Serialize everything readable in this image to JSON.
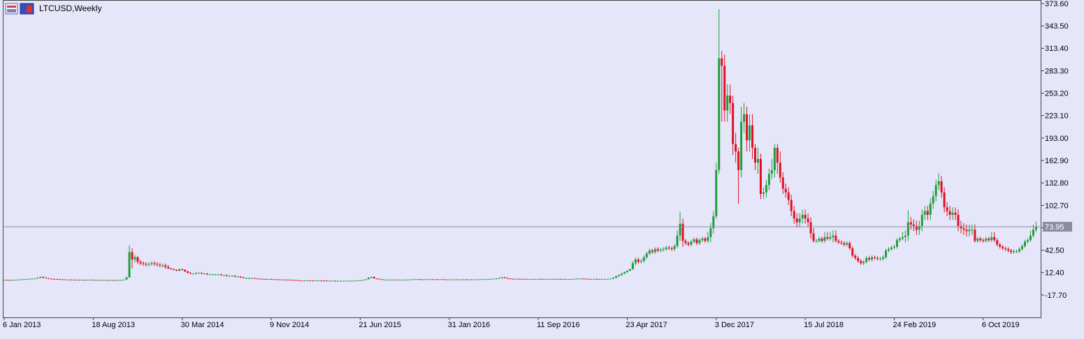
{
  "chart_data": {
    "type": "candlestick",
    "title": "LTCUSD,Weekly",
    "up_color": "#1e9e3a",
    "down_color": "#e01020",
    "price_line_color": "#8c8ca0",
    "price_line": 73.95,
    "xlim": [
      -0.5,
      372.9
    ],
    "xticks": [
      {
        "value": 0,
        "label": "6 Jan 2013"
      },
      {
        "value": 32,
        "label": "18 Aug 2013"
      },
      {
        "value": 64,
        "label": "30 Mar 2014"
      },
      {
        "value": 96,
        "label": "9 Nov 2014"
      },
      {
        "value": 128,
        "label": "21 Jun 2015"
      },
      {
        "value": 160,
        "label": "31 Jan 2016"
      },
      {
        "value": 192,
        "label": "11 Sep 2016"
      },
      {
        "value": 224,
        "label": "23 Apr 2017"
      },
      {
        "value": 256,
        "label": "3 Dec 2017"
      },
      {
        "value": 288,
        "label": "15 Jul 2018"
      },
      {
        "value": 320,
        "label": "24 Feb 2019"
      },
      {
        "value": 352,
        "label": "6 Oct 2019"
      }
    ],
    "ylim": [
      -47.7,
      378.3
    ],
    "yticks": [
      {
        "value": 373.6,
        "label": "373.60"
      },
      {
        "value": 343.5,
        "label": "343.50"
      },
      {
        "value": 313.4,
        "label": "313.40"
      },
      {
        "value": 283.3,
        "label": "283.30"
      },
      {
        "value": 253.2,
        "label": "253.20"
      },
      {
        "value": 223.1,
        "label": "223.10"
      },
      {
        "value": 193.0,
        "label": "193.00"
      },
      {
        "value": 162.9,
        "label": "162.90"
      },
      {
        "value": 132.8,
        "label": "132.80"
      },
      {
        "value": 102.7,
        "label": "102.70"
      },
      {
        "value": 72.6,
        "label": "72.60"
      },
      {
        "value": 42.5,
        "label": "42.50"
      },
      {
        "value": 12.4,
        "label": "12.40"
      },
      {
        "value": -17.7,
        "label": "-17.70"
      }
    ],
    "open": [
      2.5,
      2.6,
      2.5,
      2.4,
      2.5,
      2.8,
      3.0,
      3.2,
      3.5,
      3.8,
      4.0,
      4.3,
      4.5,
      5.5,
      6.5,
      5.5,
      4.8,
      4.2,
      4.0,
      3.8,
      3.6,
      3.4,
      3.2,
      3.0,
      3.0,
      2.9,
      2.8,
      2.8,
      2.7,
      2.7,
      2.6,
      2.7,
      2.8,
      2.6,
      2.6,
      2.5,
      2.5,
      2.5,
      2.4,
      2.4,
      2.4,
      2.2,
      2.3,
      2.5,
      3.0,
      6,
      40,
      30,
      33,
      27,
      25,
      24,
      23,
      24,
      25,
      24,
      23,
      22,
      22,
      20,
      18,
      17,
      16,
      15,
      17,
      16,
      14,
      12,
      11,
      11,
      12,
      12,
      11,
      11,
      10,
      10,
      10,
      10,
      10,
      9,
      9,
      8,
      8,
      8,
      7,
      7,
      6,
      5,
      5,
      5,
      5,
      4.5,
      4.3,
      4.0,
      3.8,
      3.7,
      3.8,
      3.5,
      3.4,
      3.3,
      3.1,
      3.0,
      2.9,
      2.8,
      2.7,
      2.4,
      2.1,
      1.7,
      1.6,
      1.8,
      1.9,
      1.8,
      1.7,
      1.8,
      1.8,
      1.7,
      1.6,
      1.5,
      1.5,
      1.5,
      1.4,
      1.4,
      1.4,
      1.4,
      1.5,
      1.5,
      1.5,
      1.6,
      1.8,
      2.0,
      2.5,
      3.5,
      5.5,
      6.5,
      4.5,
      4.0,
      3.5,
      2.8,
      2.9,
      2.9,
      3.0,
      3.0,
      2.9,
      2.9,
      2.9,
      2.9,
      3.0,
      3.3,
      3.5,
      3.6,
      3.4,
      3.3,
      3.4,
      3.5,
      3.5,
      3.4,
      3.5,
      3.3,
      3.5,
      3.2,
      3.1,
      3.2,
      3.2,
      3.3,
      3.2,
      3.2,
      3.3,
      3.2,
      3.3,
      3.2,
      3.3,
      3.3,
      3.5,
      3.6,
      3.7,
      3.8,
      4.0,
      4.3,
      4.5,
      5.2,
      6.0,
      5.0,
      4.5,
      4.1,
      4.0,
      4.1,
      4.0,
      3.9,
      3.8,
      3.8,
      3.8,
      3.8,
      3.8,
      3.9,
      3.8,
      3.8,
      3.9,
      3.9,
      3.9,
      3.8,
      3.9,
      3.8,
      3.8,
      3.8,
      3.8,
      3.8,
      4.0,
      4.3,
      4.4,
      4.3,
      3.9,
      3.8,
      3.9,
      3.9,
      3.8,
      3.8,
      3.8,
      3.9,
      4.0,
      4.2,
      5.5,
      7.5,
      9,
      11,
      13,
      15,
      17,
      25,
      30,
      27,
      28,
      33,
      38,
      42,
      40,
      44,
      42,
      43,
      44,
      46,
      45,
      44,
      48,
      62,
      78,
      55,
      52,
      50,
      54,
      57,
      52,
      56,
      58,
      55,
      60,
      72,
      88,
      150,
      300,
      290,
      230,
      250,
      240,
      185,
      175,
      150,
      215,
      225,
      190,
      210,
      180,
      160,
      165,
      118,
      120,
      130,
      145,
      150,
      180,
      160,
      140,
      125,
      120,
      110,
      95,
      85,
      80,
      85,
      90,
      85,
      80,
      65,
      55,
      55,
      58,
      55,
      60,
      58,
      60,
      62,
      55,
      53,
      52,
      50,
      52,
      45,
      35,
      32,
      28,
      25,
      27,
      32,
      30,
      33,
      32,
      31,
      31,
      33,
      42,
      44,
      46,
      47,
      56,
      58,
      60,
      62,
      80,
      77,
      75,
      70,
      75,
      90,
      95,
      90,
      105,
      115,
      130,
      135,
      120,
      100,
      95,
      90,
      93,
      90,
      75,
      72,
      70,
      68,
      70,
      70,
      55,
      58,
      56,
      55,
      58,
      56,
      60,
      56,
      50,
      47,
      45,
      44,
      42,
      40,
      41,
      41,
      44,
      48,
      54,
      56,
      62,
      70
    ],
    "high": [
      2.8,
      2.8,
      2.7,
      2.7,
      3.0,
      3.2,
      3.4,
      3.7,
      4.0,
      4.2,
      4.5,
      4.7,
      6.3,
      7.3,
      7.3,
      6.3,
      5.0,
      4.4,
      4.2,
      4.0,
      3.8,
      3.6,
      3.4,
      3.2,
      3.2,
      3.1,
      3.0,
      3.0,
      2.9,
      2.9,
      2.9,
      3.0,
      3.0,
      2.8,
      2.8,
      2.7,
      2.7,
      2.7,
      2.6,
      2.6,
      2.6,
      2.5,
      2.7,
      3.2,
      7,
      49,
      45,
      36,
      35,
      29.5,
      27.5,
      26.5,
      26.5,
      27.5,
      27.5,
      26.5,
      25.5,
      24.5,
      24.5,
      22.5,
      18.8,
      17.8,
      16.8,
      17.8,
      17.8,
      16.8,
      14.8,
      12.8,
      11.8,
      12.8,
      12.8,
      12.8,
      11.8,
      11.8,
      10.8,
      10.8,
      10.8,
      10.8,
      10.8,
      9.8,
      9.8,
      8.8,
      8.8,
      8.8,
      7.8,
      7.8,
      6.8,
      5.8,
      5.8,
      5.8,
      5.8,
      4.7,
      4.5,
      4.2,
      4.0,
      4.0,
      4.0,
      3.7,
      3.6,
      3.5,
      3.3,
      3.2,
      3.1,
      3.0,
      2.9,
      2.6,
      2.3,
      1.9,
      2.0,
      2.1,
      2.1,
      2.0,
      2.0,
      2.0,
      2.0,
      1.9,
      1.8,
      1.7,
      1.7,
      1.7,
      1.6,
      1.6,
      1.6,
      1.7,
      1.7,
      1.7,
      1.8,
      2.0,
      2.2,
      2.7,
      3.7,
      6.3,
      7.3,
      7.3,
      4.7,
      4.2,
      3.7,
      3.1,
      3.1,
      3.2,
      3.2,
      3.2,
      3.1,
      3.1,
      3.1,
      3.2,
      3.5,
      3.7,
      3.8,
      3.8,
      3.6,
      3.6,
      3.7,
      3.7,
      3.7,
      3.7,
      3.7,
      3.7,
      3.7,
      3.4,
      3.4,
      3.4,
      3.5,
      3.5,
      3.4,
      3.5,
      3.5,
      3.5,
      3.5,
      3.5,
      3.5,
      3.7,
      3.8,
      3.9,
      4.0,
      4.2,
      4.5,
      4.7,
      6.0,
      6.8,
      6.8,
      5.8,
      4.7,
      4.3,
      4.3,
      4.3,
      4.2,
      4.1,
      4.0,
      4.0,
      4.0,
      4.0,
      4.1,
      4.1,
      4.0,
      4.1,
      4.1,
      4.1,
      4.1,
      4.1,
      4.1,
      4.0,
      4.0,
      4.0,
      4.0,
      4.2,
      4.5,
      4.6,
      4.6,
      4.5,
      4.1,
      4.1,
      4.1,
      4.1,
      4.0,
      4.0,
      4.1,
      4.2,
      4.4,
      6.3,
      8.3,
      9.8,
      11.8,
      13.8,
      15.8,
      17.8,
      27.5,
      32.5,
      32.5,
      30.5,
      35.5,
      40.5,
      44.5,
      44.5,
      46.5,
      46.5,
      45.5,
      46.5,
      48.5,
      48.5,
      47.5,
      50.5,
      69,
      94,
      85,
      57.5,
      54.5,
      56.5,
      59.5,
      59.5,
      58.5,
      60.5,
      60.5,
      67,
      79,
      95,
      160,
      366,
      310,
      305,
      265,
      265,
      250,
      200,
      180,
      235,
      240,
      235,
      225,
      225,
      185,
      180,
      172,
      127,
      137,
      152,
      165,
      185,
      185,
      175,
      147,
      132,
      127,
      117,
      102,
      92,
      92,
      97,
      97,
      92,
      87,
      72,
      57.5,
      60.5,
      60.5,
      67,
      67,
      67,
      69,
      69,
      57.5,
      55.5,
      54.5,
      54.5,
      54.5,
      47.5,
      37.5,
      34.5,
      30.5,
      29.5,
      34.5,
      34.5,
      35.5,
      35.5,
      34.5,
      33.5,
      35.5,
      44.5,
      46.5,
      48.5,
      49.5,
      58.5,
      60.5,
      67,
      69,
      96,
      87,
      84,
      82,
      82,
      97,
      102,
      102,
      112,
      122,
      137,
      146,
      142,
      127,
      107,
      102,
      100,
      100,
      97,
      82,
      79,
      77,
      77,
      77,
      77,
      60.5,
      60.5,
      58.5,
      60.5,
      60.5,
      67,
      67,
      58.5,
      52.5,
      49.5,
      47.5,
      46.5,
      44.5,
      43.5,
      43.5,
      46.5,
      50.5,
      56.5,
      58.5,
      69,
      77,
      81
    ],
    "low": [
      2.3,
      2.3,
      2.2,
      2.2,
      2.3,
      2.6,
      2.8,
      3.0,
      3.3,
      3.6,
      3.8,
      4.1,
      4.3,
      4.7,
      4.7,
      4.6,
      4.0,
      3.8,
      3.6,
      3.4,
      3.2,
      3.0,
      2.8,
      2.8,
      2.7,
      2.6,
      2.6,
      2.5,
      2.5,
      2.4,
      2.4,
      2.5,
      2.4,
      2.4,
      2.3,
      2.3,
      2.3,
      2.2,
      2.2,
      2.2,
      2.0,
      2.0,
      2.1,
      2.3,
      2.9,
      5.5,
      18,
      26,
      24,
      22.5,
      21.5,
      20.5,
      20.5,
      21.5,
      21.5,
      20.5,
      19.5,
      19.5,
      17.5,
      17.2,
      16.2,
      15.2,
      14.2,
      14.2,
      15.2,
      13.2,
      11.2,
      10.2,
      10.2,
      10.2,
      11.2,
      10.2,
      10.2,
      9.2,
      9.2,
      9.2,
      9.2,
      9.2,
      8.2,
      8.2,
      7.2,
      7.2,
      7.2,
      6.2,
      6.2,
      5.2,
      4.8,
      4.8,
      4.8,
      4.8,
      4.3,
      4.1,
      3.8,
      3.6,
      3.5,
      3.5,
      3.3,
      3.2,
      3.1,
      2.9,
      2.8,
      2.7,
      2.6,
      2.5,
      2.2,
      1.9,
      1.5,
      1.4,
      1.4,
      1.6,
      1.6,
      1.5,
      1.5,
      1.6,
      1.5,
      1.4,
      1.3,
      1.3,
      1.3,
      1.2,
      1.2,
      1.2,
      1.2,
      1.2,
      1.3,
      1.3,
      1.3,
      1.4,
      1.6,
      1.8,
      2.3,
      3.3,
      4.7,
      4.3,
      3.8,
      3.3,
      2.6,
      2.6,
      2.7,
      2.7,
      2.8,
      2.7,
      2.7,
      2.7,
      2.7,
      2.7,
      2.8,
      3.1,
      3.3,
      3.2,
      3.1,
      3.1,
      3.2,
      3.3,
      3.2,
      3.2,
      3.1,
      3.1,
      3.0,
      2.9,
      2.9,
      3.0,
      3.0,
      3.0,
      3.0,
      3.0,
      3.0,
      3.0,
      3.0,
      3.0,
      3.1,
      3.1,
      3.3,
      3.4,
      3.5,
      3.6,
      3.8,
      4.1,
      4.3,
      4.4,
      4.8,
      4.3,
      3.9,
      3.8,
      3.8,
      3.8,
      3.7,
      3.6,
      3.6,
      3.6,
      3.6,
      3.6,
      3.6,
      3.6,
      3.6,
      3.6,
      3.7,
      3.7,
      3.6,
      3.6,
      3.6,
      3.6,
      3.6,
      3.6,
      3.6,
      3.6,
      3.8,
      4.1,
      4.1,
      3.7,
      3.6,
      3.6,
      3.7,
      3.6,
      3.6,
      3.6,
      3.6,
      3.7,
      3.8,
      4.0,
      4.7,
      6.7,
      8.2,
      10.2,
      12.2,
      14.2,
      16.2,
      22.5,
      24.5,
      24.5,
      25.5,
      30.5,
      35.5,
      37.5,
      37.5,
      39.5,
      39.5,
      40.5,
      41.5,
      42.5,
      41.5,
      41.5,
      45.5,
      55,
      47,
      49.5,
      47.5,
      47.5,
      51.5,
      49.5,
      49.5,
      53.5,
      52.5,
      52.5,
      53,
      65,
      85,
      145,
      215,
      215,
      215,
      225,
      170,
      160,
      105,
      140,
      200,
      175,
      175,
      165,
      150,
      145,
      111,
      111,
      113,
      123,
      138,
      140,
      145,
      133,
      118,
      113,
      103,
      88,
      78,
      73,
      73,
      78,
      78,
      73,
      58,
      52.5,
      52.5,
      52.5,
      52.5,
      52.5,
      55.5,
      55.5,
      53,
      52.5,
      50.5,
      49.5,
      47.5,
      47.5,
      42.5,
      32.5,
      29.5,
      25.5,
      22.5,
      22.5,
      24.5,
      27.5,
      27.5,
      29.5,
      28.5,
      28.5,
      28.5,
      30.5,
      39.5,
      41.5,
      43.5,
      44.5,
      53.5,
      55.5,
      53,
      55,
      70,
      68,
      63,
      63,
      68,
      83,
      83,
      83,
      98,
      108,
      123,
      113,
      93,
      88,
      83,
      83,
      83,
      68,
      65,
      63,
      61,
      61,
      63,
      52.5,
      52.5,
      53.5,
      52.5,
      52.5,
      53.5,
      53.5,
      53.5,
      47.5,
      44.5,
      42.5,
      41.5,
      39.5,
      37.5,
      37.5,
      38.5,
      38.5,
      41.5,
      45.5,
      51.5,
      53.5,
      59.5,
      67
    ],
    "close": [
      2.6,
      2.5,
      2.4,
      2.5,
      2.8,
      3.0,
      3.2,
      3.5,
      3.8,
      4.0,
      4.3,
      4.5,
      5.5,
      6.5,
      5.5,
      4.8,
      4.2,
      4.0,
      3.8,
      3.6,
      3.4,
      3.2,
      3.0,
      3.0,
      2.9,
      2.8,
      2.8,
      2.7,
      2.7,
      2.6,
      2.7,
      2.8,
      2.6,
      2.6,
      2.5,
      2.5,
      2.5,
      2.4,
      2.4,
      2.4,
      2.2,
      2.3,
      2.5,
      3.0,
      6,
      40,
      30,
      33,
      27,
      25,
      24,
      23,
      24,
      25,
      24,
      23,
      22,
      22,
      20,
      18,
      17,
      16,
      15,
      17,
      16,
      14,
      12,
      11,
      11,
      12,
      12,
      11,
      11,
      10,
      10,
      10,
      10,
      10,
      9,
      9,
      8,
      8,
      8,
      7,
      7,
      6,
      5,
      5,
      5,
      5,
      4.5,
      4.3,
      4.0,
      3.8,
      3.7,
      3.8,
      3.5,
      3.4,
      3.3,
      3.1,
      3.0,
      2.9,
      2.8,
      2.7,
      2.4,
      2.1,
      1.7,
      1.6,
      1.8,
      1.9,
      1.8,
      1.7,
      1.8,
      1.8,
      1.7,
      1.6,
      1.5,
      1.5,
      1.5,
      1.4,
      1.4,
      1.4,
      1.4,
      1.5,
      1.5,
      1.5,
      1.6,
      1.8,
      2.0,
      2.5,
      3.5,
      5.5,
      6.5,
      4.5,
      4.0,
      3.5,
      2.8,
      2.9,
      2.9,
      3.0,
      3.0,
      2.9,
      2.9,
      2.9,
      2.9,
      3.0,
      3.3,
      3.5,
      3.6,
      3.4,
      3.3,
      3.4,
      3.5,
      3.5,
      3.4,
      3.5,
      3.3,
      3.5,
      3.2,
      3.1,
      3.2,
      3.2,
      3.3,
      3.2,
      3.2,
      3.3,
      3.2,
      3.3,
      3.2,
      3.3,
      3.3,
      3.5,
      3.6,
      3.7,
      3.8,
      4.0,
      4.3,
      4.5,
      5.2,
      6.0,
      5.0,
      4.5,
      4.1,
      4.0,
      4.1,
      4.0,
      3.9,
      3.8,
      3.8,
      3.8,
      3.8,
      3.8,
      3.9,
      3.8,
      3.8,
      3.9,
      3.9,
      3.9,
      3.8,
      3.9,
      3.8,
      3.8,
      3.8,
      3.8,
      3.8,
      4.0,
      4.3,
      4.4,
      4.3,
      3.9,
      3.8,
      3.9,
      3.9,
      3.8,
      3.8,
      3.8,
      3.9,
      4.0,
      4.2,
      5.5,
      7.5,
      9,
      11,
      13,
      15,
      17,
      25,
      30,
      27,
      28,
      33,
      38,
      42,
      40,
      44,
      42,
      43,
      44,
      46,
      45,
      44,
      48,
      62,
      78,
      55,
      52,
      50,
      54,
      57,
      52,
      56,
      58,
      55,
      60,
      72,
      88,
      150,
      300,
      290,
      230,
      250,
      240,
      185,
      175,
      150,
      215,
      225,
      190,
      210,
      180,
      160,
      165,
      118,
      120,
      130,
      145,
      150,
      180,
      160,
      140,
      125,
      120,
      110,
      95,
      85,
      80,
      85,
      90,
      85,
      80,
      65,
      55,
      55,
      58,
      55,
      60,
      58,
      60,
      62,
      55,
      53,
      52,
      50,
      52,
      45,
      35,
      32,
      28,
      25,
      27,
      32,
      30,
      33,
      32,
      31,
      31,
      33,
      42,
      44,
      46,
      47,
      56,
      58,
      60,
      62,
      80,
      77,
      75,
      70,
      75,
      90,
      95,
      90,
      105,
      115,
      130,
      135,
      120,
      100,
      95,
      90,
      93,
      90,
      75,
      72,
      70,
      68,
      70,
      70,
      55,
      58,
      56,
      55,
      58,
      56,
      60,
      56,
      50,
      47,
      45,
      44,
      42,
      40,
      41,
      41,
      44,
      48,
      54,
      56,
      62,
      70,
      73.95
    ]
  }
}
